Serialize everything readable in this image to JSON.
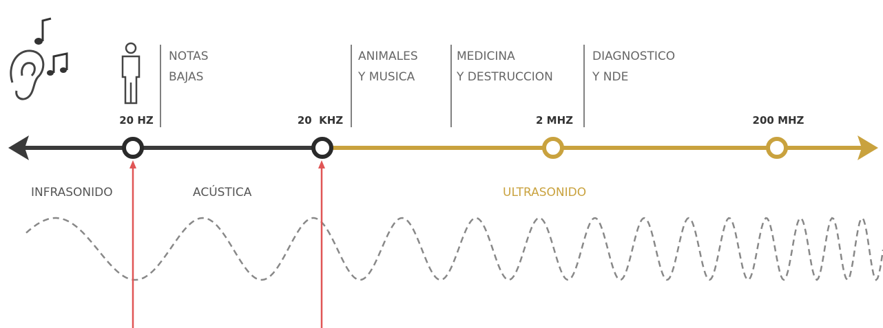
{
  "frequencies": [
    "20 HZ",
    "20  KHZ",
    "2 MHZ",
    "200 MHZ"
  ],
  "applications": [
    [
      "NOTAS",
      "BAJAS"
    ],
    [
      "ANIMALES",
      "Y MUSICA"
    ],
    [
      "MEDICINA",
      "Y DESTRUCCION"
    ],
    [
      "DIAGNOSTICO",
      "Y NDE"
    ]
  ],
  "regions": [
    "INFRASONIDO",
    "ACÚSTICA",
    "ULTRASONIDO"
  ]
}
